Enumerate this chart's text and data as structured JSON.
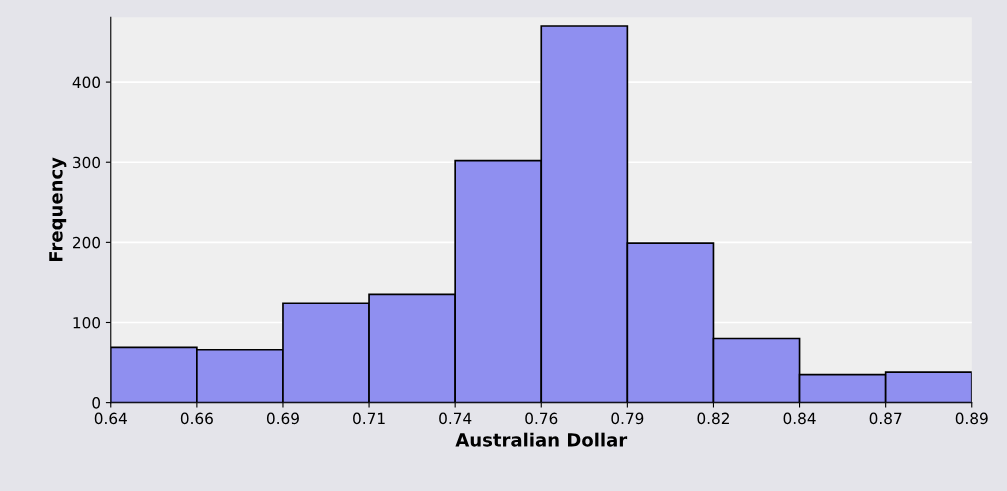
{
  "chart_data": {
    "type": "histogram",
    "xlabel": "Australian Dollar",
    "ylabel": "Frequency",
    "bins": [
      0.64,
      0.665,
      0.69,
      0.715,
      0.74,
      0.765,
      0.79,
      0.815,
      0.84,
      0.865,
      0.89
    ],
    "values": [
      69,
      66,
      124,
      135,
      302,
      470,
      199,
      80,
      35,
      38
    ],
    "color": "#8f8ff0",
    "xlim": [
      0.64,
      0.89
    ],
    "xticks": [
      0.64,
      {
        "value": 0.665,
        "label": "0.66"
      },
      0.69,
      {
        "value": 0.715,
        "label": "0.71"
      },
      0.74,
      {
        "value": 0.765,
        "label": "0.76"
      },
      0.79,
      {
        "value": 0.815,
        "label": "0.82"
      },
      0.84,
      {
        "value": 0.865,
        "label": "0.87"
      },
      0.89
    ],
    "ylim": [
      0,
      481
    ],
    "yticks": [
      0,
      100,
      200,
      300,
      400
    ],
    "grid": "y",
    "legend": false
  }
}
